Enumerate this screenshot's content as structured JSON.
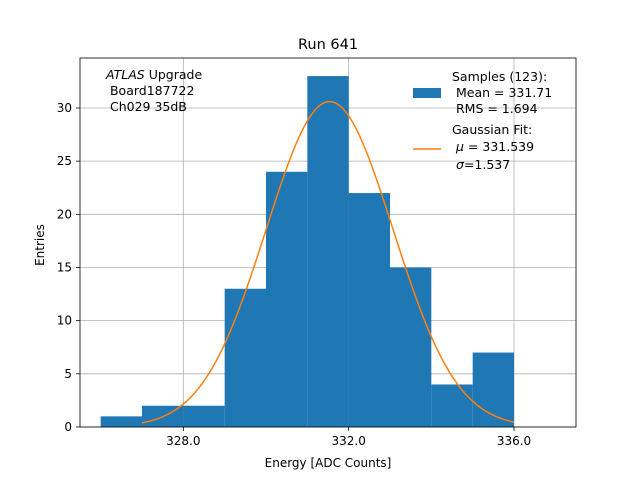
{
  "chart_data": {
    "type": "bar",
    "title": "Run 641",
    "xlabel": "Energy [ADC Counts]",
    "ylabel": "Entries",
    "xlim": [
      325.5,
      337.5
    ],
    "ylim": [
      0,
      34.7
    ],
    "x_ticks": [
      328,
      332,
      336
    ],
    "x_tick_labels": [
      "328.0",
      "332.0",
      "336.0"
    ],
    "y_ticks": [
      0,
      5,
      10,
      15,
      20,
      25,
      30
    ],
    "y_tick_labels": [
      "0",
      "5",
      "10",
      "15",
      "20",
      "25",
      "30"
    ],
    "grid": true,
    "histogram": {
      "bin_edges": [
        326,
        327,
        328,
        329,
        330,
        331,
        332,
        333,
        334,
        335,
        336
      ],
      "counts": [
        1,
        2,
        2,
        13,
        24,
        33,
        22,
        15,
        4,
        7
      ],
      "color": "#1f77b4"
    },
    "fit": {
      "mu": 331.539,
      "sigma": 1.537,
      "peak": 30.6,
      "x_range": [
        327,
        336
      ],
      "color": "#ff7f0e"
    },
    "annotation": {
      "line1_italic": "ATLAS",
      "line1_rest": " Upgrade",
      "line2": " Board187722",
      "line3": " Ch029 35dB"
    },
    "legend": {
      "position": "top-right",
      "samples_title": "Samples (123):",
      "samples_mean": " Mean = 331.71",
      "samples_rms": " RMS = 1.694",
      "fit_title": "Gaussian Fit:",
      "fit_mu_symbol": "μ",
      "fit_mu_rest": " = 331.539",
      "fit_sigma_symbol": "σ",
      "fit_sigma_rest": "=1.537"
    }
  }
}
